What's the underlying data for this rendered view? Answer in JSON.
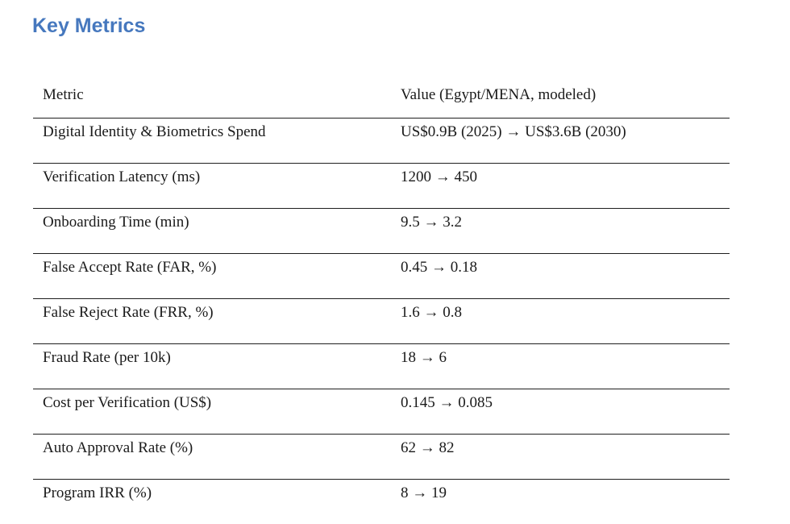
{
  "page": {
    "background_color": "#ffffff",
    "text_color": "#1a1a1a",
    "accent_color": "#4678be",
    "rule_color": "#1f1f1f"
  },
  "title": "Key Metrics",
  "table": {
    "columns": [
      "Metric",
      "Value (Egypt/MENA, modeled)"
    ],
    "rows": [
      {
        "metric": "Digital Identity & Biometrics Spend",
        "value": "US$0.9B (2025) → US$3.6B (2030)"
      },
      {
        "metric": "Verification Latency (ms)",
        "value": "1200 → 450"
      },
      {
        "metric": "Onboarding Time (min)",
        "value": "9.5 → 3.2"
      },
      {
        "metric": "False Accept Rate (FAR, %)",
        "value": "0.45 → 0.18"
      },
      {
        "metric": "False Reject Rate (FRR, %)",
        "value": "1.6 → 0.8"
      },
      {
        "metric": "Fraud Rate (per 10k)",
        "value": "18 → 6"
      },
      {
        "metric": "Cost per Verification (US$)",
        "value": "0.145 → 0.085"
      },
      {
        "metric": "Auto Approval Rate (%)",
        "value": "62 → 82"
      },
      {
        "metric": "Program IRR (%)",
        "value": "8 → 19"
      }
    ]
  }
}
